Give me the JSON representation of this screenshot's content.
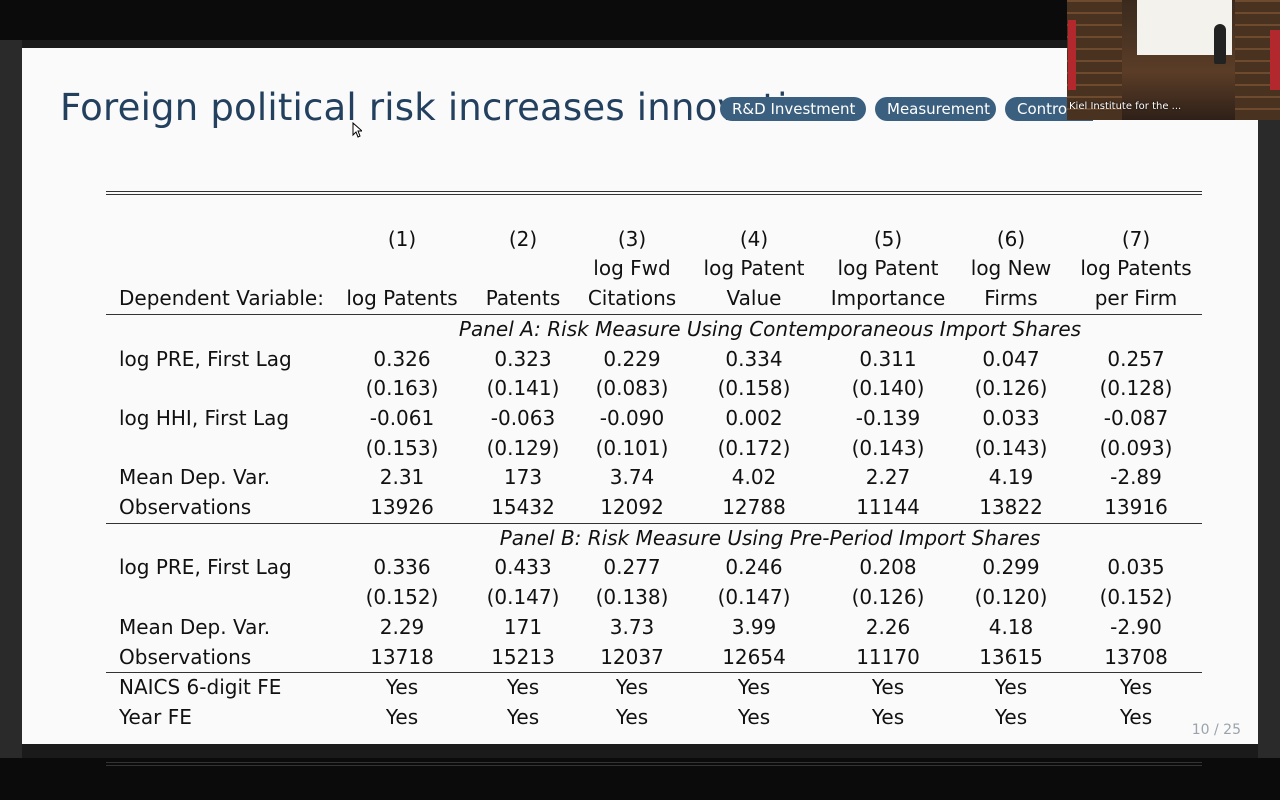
{
  "slide": {
    "title": "Foreign political risk increases innovation",
    "pills": [
      {
        "label": "R&D Investment"
      },
      {
        "label": "Measurement"
      },
      {
        "label": "Contro"
      }
    ],
    "page": "10 / 25"
  },
  "webcam": {
    "label": "Kiel Institute for the ..."
  },
  "table": {
    "columns": [
      {
        "num": "(1)",
        "l1": "",
        "l2": "log Patents"
      },
      {
        "num": "(2)",
        "l1": "",
        "l2": "Patents"
      },
      {
        "num": "(3)",
        "l1": "log Fwd",
        "l2": "Citations"
      },
      {
        "num": "(4)",
        "l1": "log Patent",
        "l2": "Value"
      },
      {
        "num": "(5)",
        "l1": "log Patent",
        "l2": "Importance"
      },
      {
        "num": "(6)",
        "l1": "log New",
        "l2": "Firms"
      },
      {
        "num": "(7)",
        "l1": "log Patents",
        "l2": "per Firm"
      }
    ],
    "dep_var_label": "Dependent Variable:",
    "panelA": {
      "title": "Panel A: Risk Measure Using Contemporaneous Import Shares",
      "rows": [
        {
          "label": "log PRE, First Lag",
          "values": [
            "0.326",
            "0.323",
            "0.229",
            "0.334",
            "0.311",
            "0.047",
            "0.257"
          ]
        },
        {
          "label": "",
          "values": [
            "(0.163)",
            "(0.141)",
            "(0.083)",
            "(0.158)",
            "(0.140)",
            "(0.126)",
            "(0.128)"
          ]
        },
        {
          "label": "log HHI, First Lag",
          "values": [
            "-0.061",
            "-0.063",
            "-0.090",
            "0.002",
            "-0.139",
            "0.033",
            "-0.087"
          ]
        },
        {
          "label": "",
          "values": [
            "(0.153)",
            "(0.129)",
            "(0.101)",
            "(0.172)",
            "(0.143)",
            "(0.143)",
            "(0.093)"
          ]
        },
        {
          "label": "Mean Dep. Var.",
          "values": [
            "2.31",
            "173",
            "3.74",
            "4.02",
            "2.27",
            "4.19",
            "-2.89"
          ]
        },
        {
          "label": "Observations",
          "values": [
            "13926",
            "15432",
            "12092",
            "12788",
            "11144",
            "13822",
            "13916"
          ]
        }
      ]
    },
    "panelB": {
      "title": "Panel B: Risk Measure Using Pre-Period Import Shares",
      "rows": [
        {
          "label": "log PRE, First Lag",
          "values": [
            "0.336",
            "0.433",
            "0.277",
            "0.246",
            "0.208",
            "0.299",
            "0.035"
          ]
        },
        {
          "label": "",
          "values": [
            "(0.152)",
            "(0.147)",
            "(0.138)",
            "(0.147)",
            "(0.126)",
            "(0.120)",
            "(0.152)"
          ]
        },
        {
          "label": "Mean Dep. Var.",
          "values": [
            "2.29",
            "171",
            "3.73",
            "3.99",
            "2.26",
            "4.18",
            "-2.90"
          ]
        },
        {
          "label": "Observations",
          "values": [
            "13718",
            "15213",
            "12037",
            "12654",
            "11170",
            "13615",
            "13708"
          ]
        }
      ]
    },
    "fe_rows": [
      {
        "label": "NAICS 6-digit FE",
        "values": [
          "Yes",
          "Yes",
          "Yes",
          "Yes",
          "Yes",
          "Yes",
          "Yes"
        ]
      },
      {
        "label": "Year FE",
        "values": [
          "Yes",
          "Yes",
          "Yes",
          "Yes",
          "Yes",
          "Yes",
          "Yes"
        ]
      }
    ]
  }
}
